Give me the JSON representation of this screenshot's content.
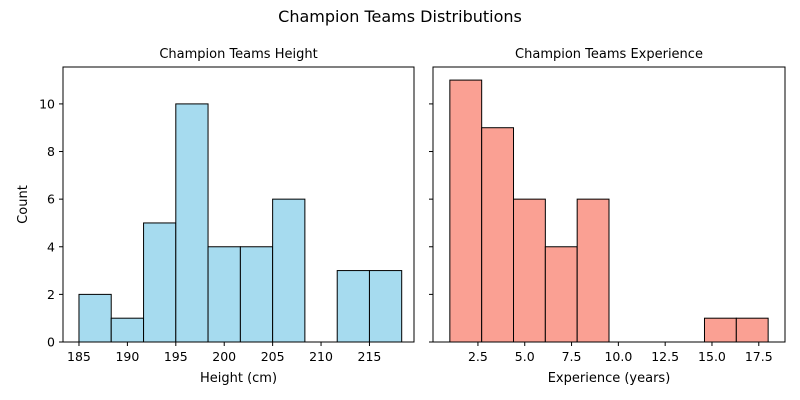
{
  "figure": {
    "suptitle": "Champion Teams Distributions"
  },
  "chart_data": [
    {
      "type": "bar",
      "title": "Champion Teams Height",
      "xlabel": "Height (cm)",
      "ylabel": "Count",
      "xlim": [
        183.35,
        219.6
      ],
      "ylim": [
        0,
        11.55
      ],
      "bin_edges": [
        185.0,
        188.33,
        191.67,
        195.0,
        198.33,
        201.67,
        205.0,
        208.33,
        211.67,
        215.0,
        218.33
      ],
      "values": [
        2,
        1,
        5,
        10,
        4,
        4,
        6,
        0,
        3,
        3
      ],
      "xticks": [
        185,
        190,
        195,
        200,
        205,
        210,
        215
      ],
      "xtick_labels": [
        "185",
        "190",
        "195",
        "200",
        "205",
        "210",
        "215"
      ],
      "yticks": [
        0,
        2,
        4,
        6,
        8,
        10
      ],
      "ytick_labels": [
        "0",
        "2",
        "4",
        "6",
        "8",
        "10"
      ],
      "color": "#a6dbef",
      "edge_color": "#000000",
      "grid": false
    },
    {
      "type": "bar",
      "title": "Champion Teams Experience",
      "xlabel": "Experience (years)",
      "ylabel": "",
      "xlim": [
        0.1,
        18.9
      ],
      "ylim": [
        0,
        11.55
      ],
      "bin_edges": [
        1.0,
        2.7,
        4.4,
        6.1,
        7.8,
        9.5,
        11.2,
        12.9,
        14.6,
        16.3,
        18.0
      ],
      "values": [
        11,
        9,
        6,
        4,
        6,
        0,
        0,
        0,
        1,
        1
      ],
      "xticks": [
        2.5,
        5.0,
        7.5,
        10.0,
        12.5,
        15.0,
        17.5
      ],
      "xtick_labels": [
        "2.5",
        "5.0",
        "7.5",
        "10.0",
        "12.5",
        "15.0",
        "17.5"
      ],
      "yticks": [
        0,
        2,
        4,
        6,
        8,
        10
      ],
      "ytick_labels": [],
      "color": "#faa093",
      "edge_color": "#000000",
      "grid": false
    }
  ]
}
